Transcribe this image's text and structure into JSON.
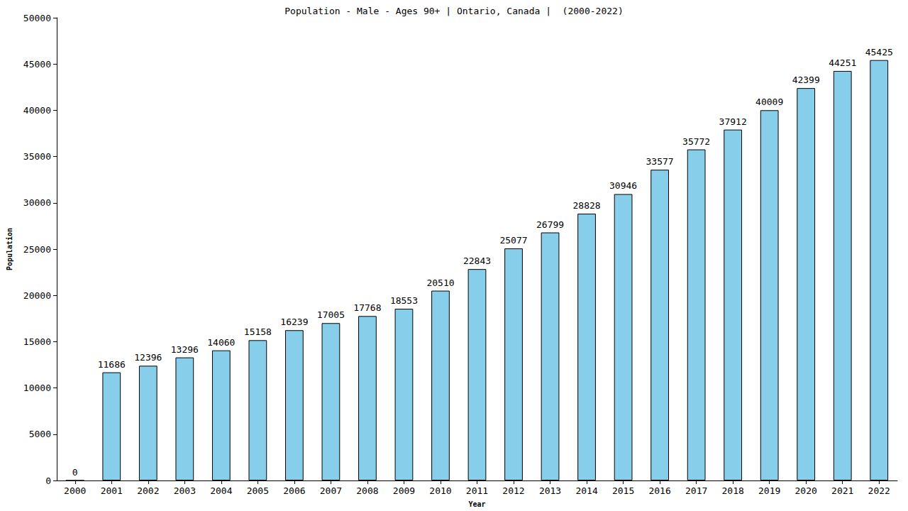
{
  "chart_data": {
    "type": "bar",
    "title": "Population - Male - Ages 90+ | Ontario, Canada |  (2000-2022)",
    "x_label": "Year",
    "y_label": "Population",
    "categories": [
      "2000",
      "2001",
      "2002",
      "2003",
      "2004",
      "2005",
      "2006",
      "2007",
      "2008",
      "2009",
      "2010",
      "2011",
      "2012",
      "2013",
      "2014",
      "2015",
      "2016",
      "2017",
      "2018",
      "2019",
      "2020",
      "2021",
      "2022"
    ],
    "values": [
      0,
      11686,
      12396,
      13296,
      14060,
      15158,
      16239,
      17005,
      17768,
      18553,
      20510,
      22843,
      25077,
      26799,
      28828,
      30946,
      33577,
      35772,
      37912,
      40009,
      42399,
      44251,
      45425
    ],
    "color": "#87ceeb",
    "ylim": [
      0,
      50000
    ],
    "yticks": [
      0,
      5000,
      10000,
      15000,
      20000,
      25000,
      30000,
      35000,
      40000,
      45000,
      50000
    ],
    "grid": false,
    "data_labels": true
  }
}
